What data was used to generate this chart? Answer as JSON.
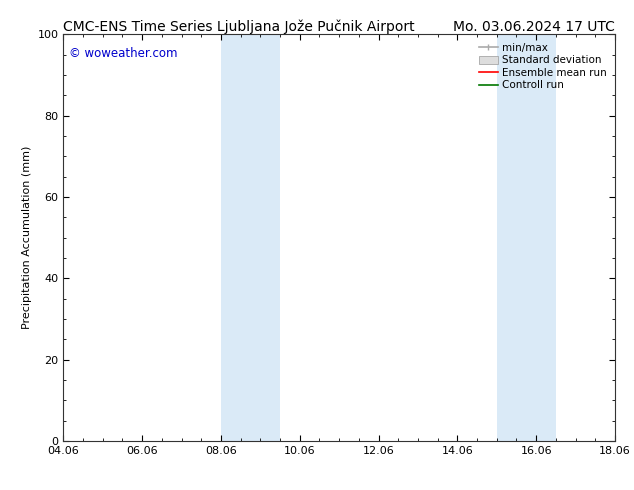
{
  "title_left": "CMC-ENS Time Series Ljubljana Jože Pučnik Airport",
  "title_right": "Mo. 03.06.2024 17 UTC",
  "ylabel": "Precipitation Accumulation (mm)",
  "watermark": "© woweather.com",
  "watermark_color": "#0000cc",
  "xlim_start": 4.06,
  "xlim_end": 18.06,
  "ylim": [
    0,
    100
  ],
  "yticks": [
    0,
    20,
    40,
    60,
    80,
    100
  ],
  "xtick_labels": [
    "04.06",
    "06.06",
    "08.06",
    "10.06",
    "12.06",
    "14.06",
    "16.06",
    "18.06"
  ],
  "xtick_positions": [
    4.06,
    6.06,
    8.06,
    10.06,
    12.06,
    14.06,
    16.06,
    18.06
  ],
  "shaded_regions": [
    {
      "x_start": 8.06,
      "x_end": 9.56,
      "color": "#daeaf7"
    },
    {
      "x_start": 15.06,
      "x_end": 16.56,
      "color": "#daeaf7"
    }
  ],
  "bg_color": "#ffffff",
  "plot_bg_color": "#ffffff",
  "title_fontsize": 10,
  "axis_fontsize": 8,
  "tick_fontsize": 8,
  "legend_fontsize": 7.5
}
